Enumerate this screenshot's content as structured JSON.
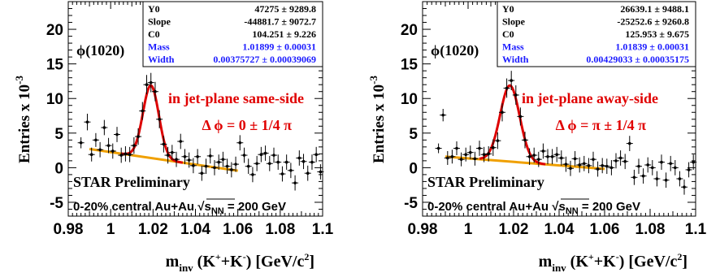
{
  "chart_data": [
    {
      "type": "scatter",
      "xlabel_main": "m",
      "xlabel_sub": "inv",
      "xlabel_particles": "(K",
      "xlabel_unit": "[GeV/c",
      "ylabel": "Entries  x 10",
      "ylabel_exp": "-3",
      "xlim": [
        0.98,
        1.1
      ],
      "ylim": [
        -7,
        24
      ],
      "xticks": [
        0.98,
        1,
        1.02,
        1.04,
        1.06,
        1.08,
        1.1
      ],
      "xtick_labels": [
        "0.98",
        "1",
        "1.02",
        "1.04",
        "1.06",
        "1.08",
        "1.1"
      ],
      "yticks": [
        -5,
        0,
        5,
        10,
        15,
        20
      ],
      "ytick_labels": [
        "-5",
        "0",
        "5",
        "10",
        "15",
        "20"
      ],
      "particle_label": "ϕ(1020)",
      "annotation_1": "in jet-plane same-side",
      "annotation_2": "Δ ϕ =  0 ± 1/4 π",
      "preliminary": "STAR Preliminary",
      "centrality": "0-20% central Au+Au",
      "sqrt_s_text": "s",
      "sqrt_s_sub": "NN",
      "energy": "=  200 GeV",
      "fit_params": [
        {
          "name": "Y0",
          "value": "47275 ± 9289.8",
          "color": "#000000"
        },
        {
          "name": "Slope",
          "value": "-44881.7 ± 9072.7",
          "color": "#000000"
        },
        {
          "name": "C0",
          "value": "104.251 ± 9.226",
          "color": "#000000"
        },
        {
          "name": "Mass",
          "value": "1.01899 ± 0.00031",
          "color": "#1a1aff"
        },
        {
          "name": "Width",
          "value": "0.00375727 ± 0.00039069",
          "color": "#1a1aff"
        }
      ],
      "fit": {
        "mass": 1.01899,
        "width": 0.00375727,
        "amplitude": 10.5,
        "bg_intercept_at_0_99": 2.7,
        "bg_slope_per_GeV": -44.9,
        "bg_range": [
          0.99,
          1.06
        ]
      },
      "points": [
        {
          "x": 0.986,
          "y": 3.6,
          "err": 0.8
        },
        {
          "x": 0.989,
          "y": 6.6,
          "err": 1.2
        },
        {
          "x": 0.991,
          "y": 1.9,
          "err": 1.0
        },
        {
          "x": 0.993,
          "y": 4.0,
          "err": 1.0
        },
        {
          "x": 0.995,
          "y": 2.6,
          "err": 1.1
        },
        {
          "x": 0.997,
          "y": 5.8,
          "err": 1.1
        },
        {
          "x": 0.999,
          "y": 3.2,
          "err": 1.1
        },
        {
          "x": 1.001,
          "y": 2.4,
          "err": 1.1
        },
        {
          "x": 1.003,
          "y": 4.8,
          "err": 1.1
        },
        {
          "x": 1.005,
          "y": 1.8,
          "err": 1.1
        },
        {
          "x": 1.007,
          "y": 2.0,
          "err": 1.1
        },
        {
          "x": 1.009,
          "y": 1.9,
          "err": 1.1
        },
        {
          "x": 1.011,
          "y": 3.2,
          "err": 1.2
        },
        {
          "x": 1.013,
          "y": 4.5,
          "err": 1.2
        },
        {
          "x": 1.015,
          "y": 8.2,
          "err": 1.3
        },
        {
          "x": 1.017,
          "y": 12.0,
          "err": 1.4
        },
        {
          "x": 1.019,
          "y": 12.3,
          "err": 1.4
        },
        {
          "x": 1.021,
          "y": 11.0,
          "err": 1.4
        },
        {
          "x": 1.023,
          "y": 7.0,
          "err": 1.3
        },
        {
          "x": 1.025,
          "y": 3.4,
          "err": 1.2
        },
        {
          "x": 1.027,
          "y": 1.8,
          "err": 1.2
        },
        {
          "x": 1.029,
          "y": 2.2,
          "err": 1.1
        },
        {
          "x": 1.031,
          "y": 1.2,
          "err": 1.1
        },
        {
          "x": 1.033,
          "y": 3.8,
          "err": 1.1
        },
        {
          "x": 1.035,
          "y": 1.6,
          "err": 1.1
        },
        {
          "x": 1.037,
          "y": 1.1,
          "err": 1.1
        },
        {
          "x": 1.039,
          "y": 0.3,
          "err": 1.1
        },
        {
          "x": 1.041,
          "y": 1.6,
          "err": 1.1
        },
        {
          "x": 1.043,
          "y": -0.8,
          "err": 1.1
        },
        {
          "x": 1.045,
          "y": 0.2,
          "err": 1.1
        },
        {
          "x": 1.047,
          "y": 1.7,
          "err": 1.1
        },
        {
          "x": 1.049,
          "y": 0.0,
          "err": 1.1
        },
        {
          "x": 1.051,
          "y": 0.8,
          "err": 1.1
        },
        {
          "x": 1.053,
          "y": 1.2,
          "err": 1.1
        },
        {
          "x": 1.055,
          "y": 0.2,
          "err": 1.1
        },
        {
          "x": 1.057,
          "y": -0.3,
          "err": 1.1
        },
        {
          "x": 1.059,
          "y": 0.5,
          "err": 1.1
        },
        {
          "x": 1.061,
          "y": 3.6,
          "err": 1.1
        },
        {
          "x": 1.063,
          "y": 1.8,
          "err": 1.1
        },
        {
          "x": 1.065,
          "y": 0.2,
          "err": 1.1
        },
        {
          "x": 1.067,
          "y": -1.0,
          "err": 1.1
        },
        {
          "x": 1.069,
          "y": 0.6,
          "err": 1.1
        },
        {
          "x": 1.071,
          "y": 1.9,
          "err": 1.1
        },
        {
          "x": 1.073,
          "y": 2.1,
          "err": 1.1
        },
        {
          "x": 1.075,
          "y": 0.6,
          "err": 1.1
        },
        {
          "x": 1.077,
          "y": 1.8,
          "err": 1.1
        },
        {
          "x": 1.079,
          "y": 0.8,
          "err": 1.1
        },
        {
          "x": 1.081,
          "y": -0.9,
          "err": 1.1
        },
        {
          "x": 1.083,
          "y": 0.8,
          "err": 1.1
        },
        {
          "x": 1.085,
          "y": -0.4,
          "err": 1.1
        },
        {
          "x": 1.087,
          "y": -2.2,
          "err": 1.1
        },
        {
          "x": 1.089,
          "y": 1.4,
          "err": 1.1
        },
        {
          "x": 1.091,
          "y": 0.9,
          "err": 1.1
        },
        {
          "x": 1.093,
          "y": -0.8,
          "err": 1.1
        },
        {
          "x": 1.095,
          "y": 0.8,
          "err": 1.1
        },
        {
          "x": 1.097,
          "y": 1.9,
          "err": 1.1
        },
        {
          "x": 1.099,
          "y": -0.6,
          "err": 1.1
        }
      ]
    },
    {
      "type": "scatter",
      "xlabel_main": "m",
      "xlabel_sub": "inv",
      "xlabel_particles": "(K",
      "xlabel_unit": "[GeV/c",
      "ylabel": "Entries  x 10",
      "ylabel_exp": "-3",
      "xlim": [
        0.98,
        1.1
      ],
      "ylim": [
        -7,
        24
      ],
      "xticks": [
        0.98,
        1,
        1.02,
        1.04,
        1.06,
        1.08,
        1.1
      ],
      "xtick_labels": [
        "0.98",
        "1",
        "1.02",
        "1.04",
        "1.06",
        "1.08",
        "1.1"
      ],
      "yticks": [
        -5,
        0,
        5,
        10,
        15,
        20
      ],
      "ytick_labels": [
        "-5",
        "0",
        "5",
        "10",
        "15",
        "20"
      ],
      "particle_label": "ϕ(1020)",
      "annotation_1": "in jet-plane away-side",
      "annotation_2": "Δ ϕ =  π ± 1/4 π",
      "preliminary": "STAR Preliminary",
      "centrality": "0-20% central Au+Au",
      "sqrt_s_text": "s",
      "sqrt_s_sub": "NN",
      "energy": "=  200 GeV",
      "fit_params": [
        {
          "name": "Y0",
          "value": "26639.1 ± 9488.1",
          "color": "#000000"
        },
        {
          "name": "Slope",
          "value": "-25252.6 ± 9260.8",
          "color": "#000000"
        },
        {
          "name": "C0",
          "value": "125.953 ± 9.675",
          "color": "#000000"
        },
        {
          "name": "Mass",
          "value": "1.01839 ± 0.00031",
          "color": "#1a1aff"
        },
        {
          "name": "Width",
          "value": "0.00429033 ± 0.00035175",
          "color": "#1a1aff"
        }
      ],
      "fit": {
        "mass": 1.01839,
        "width": 0.00429033,
        "amplitude": 11.0,
        "bg_intercept_at_0_99": 1.6,
        "bg_slope_per_GeV": -25.3,
        "bg_range": [
          0.99,
          1.06
        ]
      },
      "points": [
        {
          "x": 0.987,
          "y": 2.8,
          "err": 0.7
        },
        {
          "x": 0.989,
          "y": 7.6,
          "err": 0.9
        },
        {
          "x": 0.991,
          "y": 1.4,
          "err": 1.0
        },
        {
          "x": 0.993,
          "y": 1.6,
          "err": 1.0
        },
        {
          "x": 0.995,
          "y": 2.8,
          "err": 1.0
        },
        {
          "x": 0.997,
          "y": 1.2,
          "err": 1.0
        },
        {
          "x": 0.999,
          "y": 1.9,
          "err": 1.0
        },
        {
          "x": 1.001,
          "y": 2.2,
          "err": 1.0
        },
        {
          "x": 1.003,
          "y": 1.3,
          "err": 1.0
        },
        {
          "x": 1.005,
          "y": 2.8,
          "err": 1.1
        },
        {
          "x": 1.007,
          "y": 1.9,
          "err": 1.1
        },
        {
          "x": 1.009,
          "y": 2.0,
          "err": 1.1
        },
        {
          "x": 1.011,
          "y": 2.9,
          "err": 1.2
        },
        {
          "x": 1.013,
          "y": 3.9,
          "err": 1.2
        },
        {
          "x": 1.015,
          "y": 8.0,
          "err": 1.3
        },
        {
          "x": 1.017,
          "y": 11.5,
          "err": 1.4
        },
        {
          "x": 1.019,
          "y": 12.6,
          "err": 1.4
        },
        {
          "x": 1.021,
          "y": 10.5,
          "err": 1.4
        },
        {
          "x": 1.023,
          "y": 7.4,
          "err": 1.3
        },
        {
          "x": 1.025,
          "y": 4.0,
          "err": 1.2
        },
        {
          "x": 1.027,
          "y": 1.6,
          "err": 1.2
        },
        {
          "x": 1.029,
          "y": 1.8,
          "err": 1.1
        },
        {
          "x": 1.031,
          "y": 1.2,
          "err": 1.1
        },
        {
          "x": 1.033,
          "y": 2.4,
          "err": 1.1
        },
        {
          "x": 1.035,
          "y": 1.6,
          "err": 1.1
        },
        {
          "x": 1.037,
          "y": 1.6,
          "err": 1.1
        },
        {
          "x": 1.039,
          "y": 1.9,
          "err": 1.1
        },
        {
          "x": 1.041,
          "y": 1.4,
          "err": 1.1
        },
        {
          "x": 1.043,
          "y": 0.5,
          "err": 1.1
        },
        {
          "x": 1.045,
          "y": -0.1,
          "err": 1.1
        },
        {
          "x": 1.047,
          "y": 1.3,
          "err": 1.1
        },
        {
          "x": 1.049,
          "y": 0.4,
          "err": 1.1
        },
        {
          "x": 1.051,
          "y": 0.6,
          "err": 1.1
        },
        {
          "x": 1.053,
          "y": 0.3,
          "err": 1.1
        },
        {
          "x": 1.055,
          "y": 1.2,
          "err": 1.1
        },
        {
          "x": 1.057,
          "y": -0.2,
          "err": 1.1
        },
        {
          "x": 1.059,
          "y": 0.3,
          "err": 1.1
        },
        {
          "x": 1.061,
          "y": 0.2,
          "err": 1.1
        },
        {
          "x": 1.063,
          "y": 0.0,
          "err": 1.1
        },
        {
          "x": 1.065,
          "y": 1.0,
          "err": 1.1
        },
        {
          "x": 1.067,
          "y": 1.4,
          "err": 1.1
        },
        {
          "x": 1.069,
          "y": 0.9,
          "err": 1.1
        },
        {
          "x": 1.071,
          "y": 3.5,
          "err": 1.1
        },
        {
          "x": 1.073,
          "y": -1.4,
          "err": 1.1
        },
        {
          "x": 1.075,
          "y": 0.2,
          "err": 1.1
        },
        {
          "x": 1.077,
          "y": -1.2,
          "err": 1.1
        },
        {
          "x": 1.079,
          "y": 0.4,
          "err": 1.1
        },
        {
          "x": 1.081,
          "y": 0.0,
          "err": 1.1
        },
        {
          "x": 1.083,
          "y": -1.6,
          "err": 1.1
        },
        {
          "x": 1.085,
          "y": 0.8,
          "err": 1.1
        },
        {
          "x": 1.087,
          "y": -1.8,
          "err": 1.1
        },
        {
          "x": 1.089,
          "y": 0.6,
          "err": 1.1
        },
        {
          "x": 1.091,
          "y": 0.0,
          "err": 1.1
        },
        {
          "x": 1.093,
          "y": -1.6,
          "err": 1.1
        },
        {
          "x": 1.095,
          "y": -2.8,
          "err": 1.1
        },
        {
          "x": 1.097,
          "y": -0.3,
          "err": 1.1
        },
        {
          "x": 1.099,
          "y": 0.8,
          "err": 1.1
        }
      ]
    }
  ],
  "colors": {
    "points": "#000000",
    "fit_curve": "#dd0000",
    "background_line": "#f0a000",
    "annotation": "#e00000",
    "fit_highlight": "#1a1aff"
  }
}
